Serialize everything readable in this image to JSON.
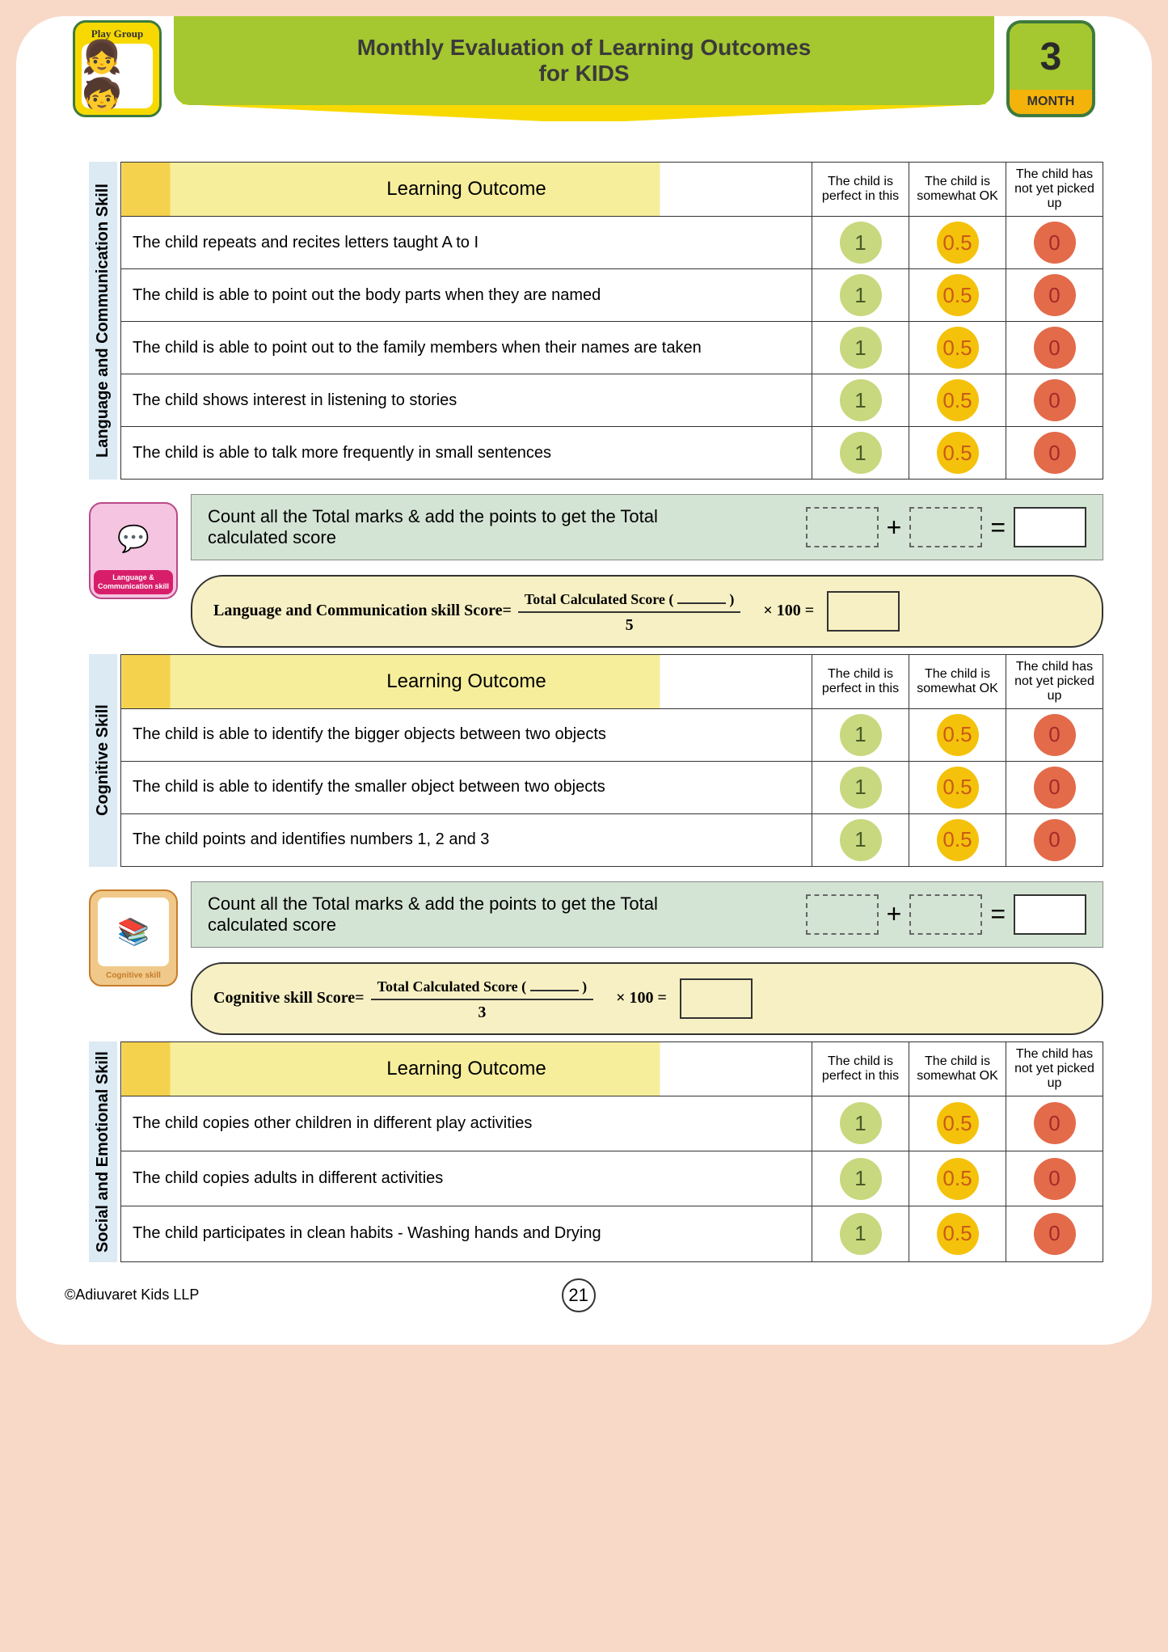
{
  "header": {
    "title_line1": "Monthly Evaluation of Learning Outcomes",
    "title_line2": "for KIDS",
    "playgroup_label": "Play Group",
    "month_number": "3",
    "month_label": "MONTH"
  },
  "score_headers": {
    "outcome": "Learning Outcome",
    "perfect": "The child is perfect in this",
    "somewhat": "The child is somewhat OK",
    "notyet": "The child has not yet picked up"
  },
  "score_values": {
    "perfect": "1",
    "somewhat": "0.5",
    "notyet": "0"
  },
  "colors": {
    "banner_green": "#a5c730",
    "banner_yellow": "#f7d900",
    "page_bg": "#f8d9c8",
    "circle_1": "#c8d87e",
    "circle_05": "#f4c20a",
    "circle_0": "#e36b4a",
    "calc_bg": "#d4e4d4",
    "formula_bg": "#f7f0c4",
    "vert_label_bg": "#dceaf4"
  },
  "sections": [
    {
      "id": "lang",
      "label": "Language and Communication Skill",
      "outcomes": [
        "The child repeats and recites letters taught  A to I",
        "The child is able to point out the body parts when they are named",
        "The child is able to point out to the family members when their names are taken",
        "The child shows interest in listening to stories",
        "The child is able to talk more frequently in small sentences"
      ],
      "icon_label": "Language & Communication skill",
      "icon_class": "lang",
      "formula_label": "Language and Communication skill Score=",
      "formula_numerator": "Total Calculated Score (",
      "divisor": "5"
    },
    {
      "id": "cog",
      "label": "Cognitive Skill",
      "outcomes": [
        "The child is able to identify the bigger objects between two objects",
        "The child is able to identify the smaller object between two objects",
        "The child points and identifies numbers 1, 2 and 3"
      ],
      "icon_label": "Cognitive skill",
      "icon_class": "cog",
      "formula_label": "Cognitive skill Score=",
      "formula_numerator": "Total Calculated Score (",
      "divisor": "3"
    },
    {
      "id": "social",
      "label": "Social and Emotional Skill",
      "outcomes": [
        "The child copies other children in different play activities",
        "The child copies adults in different activities",
        "The child participates in clean habits - Washing hands and Drying"
      ]
    }
  ],
  "calc": {
    "instruction": "Count all the Total marks & add the points to get the Total calculated score",
    "plus": "+",
    "equals": "=",
    "times100": "× 100 =",
    "close_paren": ")"
  },
  "footer": {
    "copyright": "©Adiuvaret Kids LLP",
    "page": "21"
  }
}
